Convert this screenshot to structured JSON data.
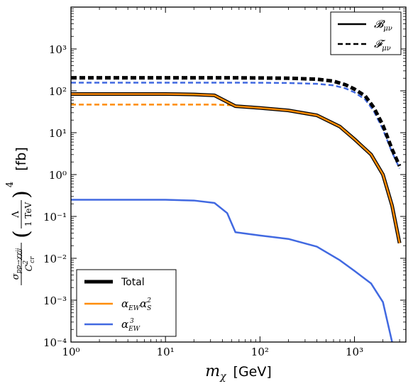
{
  "chart_data": {
    "type": "line",
    "xlabel": "m_χ [GeV]",
    "ylabel": "σ_pp→χχjj / C²_cr (Λ / 1 TeV)⁴ [fb]",
    "x_scale": "log",
    "y_scale": "log",
    "xlim": [
      1,
      3500
    ],
    "ylim": [
      0.0001,
      10000
    ],
    "x_ticks": [
      {
        "value": 1,
        "label": "10⁰"
      },
      {
        "value": 10,
        "label": "10¹"
      },
      {
        "value": 100,
        "label": "10²"
      },
      {
        "value": 1000,
        "label": "10³"
      }
    ],
    "y_ticks": [
      {
        "value": 0.0001,
        "label": "10⁻⁴"
      },
      {
        "value": 0.001,
        "label": "10⁻³"
      },
      {
        "value": 0.01,
        "label": "10⁻²"
      },
      {
        "value": 0.1,
        "label": "10⁻¹"
      },
      {
        "value": 1,
        "label": "10⁰"
      },
      {
        "value": 10,
        "label": "10¹"
      },
      {
        "value": 100,
        "label": "10²"
      },
      {
        "value": 1000,
        "label": "10³"
      }
    ],
    "legend_style": {
      "position": "top-right",
      "entries": [
        {
          "label": "B_μν",
          "dash": "solid"
        },
        {
          "label": "F_μν",
          "dash": "dashed"
        }
      ]
    },
    "legend_process": {
      "position": "bottom-left",
      "entries": [
        {
          "label": "Total",
          "color": "#000000"
        },
        {
          "label": "α_EW α_S²",
          "color": "#ff8c00"
        },
        {
          "label": "α_EW³",
          "color": "#4169e1"
        }
      ]
    },
    "series": [
      {
        "process": "Total",
        "field": "B_μν",
        "color": "#000000",
        "dash": "solid",
        "x": [
          1,
          5,
          10,
          20,
          33,
          55,
          100,
          200,
          400,
          700,
          1000,
          1500,
          2000,
          2500,
          3000
        ],
        "y": [
          84,
          84,
          84,
          82,
          78,
          43,
          39,
          34,
          26,
          14,
          7,
          3,
          1,
          0.18,
          0.023
        ]
      },
      {
        "process": "α_EW α_S²",
        "field": "B_μν",
        "color": "#ff8c00",
        "dash": "solid",
        "x": [
          1,
          5,
          10,
          20,
          33,
          55,
          100,
          200,
          400,
          700,
          1000,
          1500,
          2000,
          2500,
          3000
        ],
        "y": [
          84,
          84,
          84,
          82,
          78,
          43,
          39,
          34,
          26,
          14,
          7,
          3,
          1,
          0.18,
          0.023
        ]
      },
      {
        "process": "α_EW³",
        "field": "B_μν",
        "color": "#4169e1",
        "dash": "solid",
        "x": [
          1,
          5,
          10,
          20,
          33,
          45,
          55,
          100,
          200,
          400,
          700,
          1000,
          1500,
          2000,
          2500
        ],
        "y": [
          0.25,
          0.25,
          0.25,
          0.24,
          0.21,
          0.12,
          0.042,
          0.035,
          0.029,
          0.019,
          0.009,
          0.005,
          0.0025,
          0.0009,
          0.0001
        ]
      },
      {
        "process": "Total",
        "field": "F_μν",
        "color": "#000000",
        "dash": "dashed",
        "x": [
          1,
          10,
          50,
          100,
          200,
          400,
          600,
          800,
          1000,
          1300,
          1600,
          2000,
          2500,
          3000
        ],
        "y": [
          205,
          205,
          205,
          203,
          200,
          190,
          170,
          140,
          110,
          75,
          40,
          15,
          4,
          1.6
        ]
      },
      {
        "process": "α_EW α_S²",
        "field": "F_μν",
        "color": "#ff8c00",
        "dash": "dashed",
        "x": [
          1,
          10,
          33,
          55,
          100,
          200,
          400,
          700,
          1000,
          1500,
          2000,
          2500,
          3000
        ],
        "y": [
          47,
          47,
          47,
          45,
          40,
          34,
          26,
          14,
          7,
          3,
          1,
          0.18,
          0.023
        ]
      },
      {
        "process": "α_EW³",
        "field": "F_μν",
        "color": "#4169e1",
        "dash": "dashed",
        "x": [
          1,
          10,
          50,
          100,
          200,
          400,
          600,
          800,
          1000,
          1300,
          1600,
          2000,
          2500,
          3000
        ],
        "y": [
          157,
          157,
          157,
          156,
          154,
          147,
          135,
          115,
          92,
          62,
          33,
          12,
          3.4,
          1.4
        ]
      }
    ]
  }
}
